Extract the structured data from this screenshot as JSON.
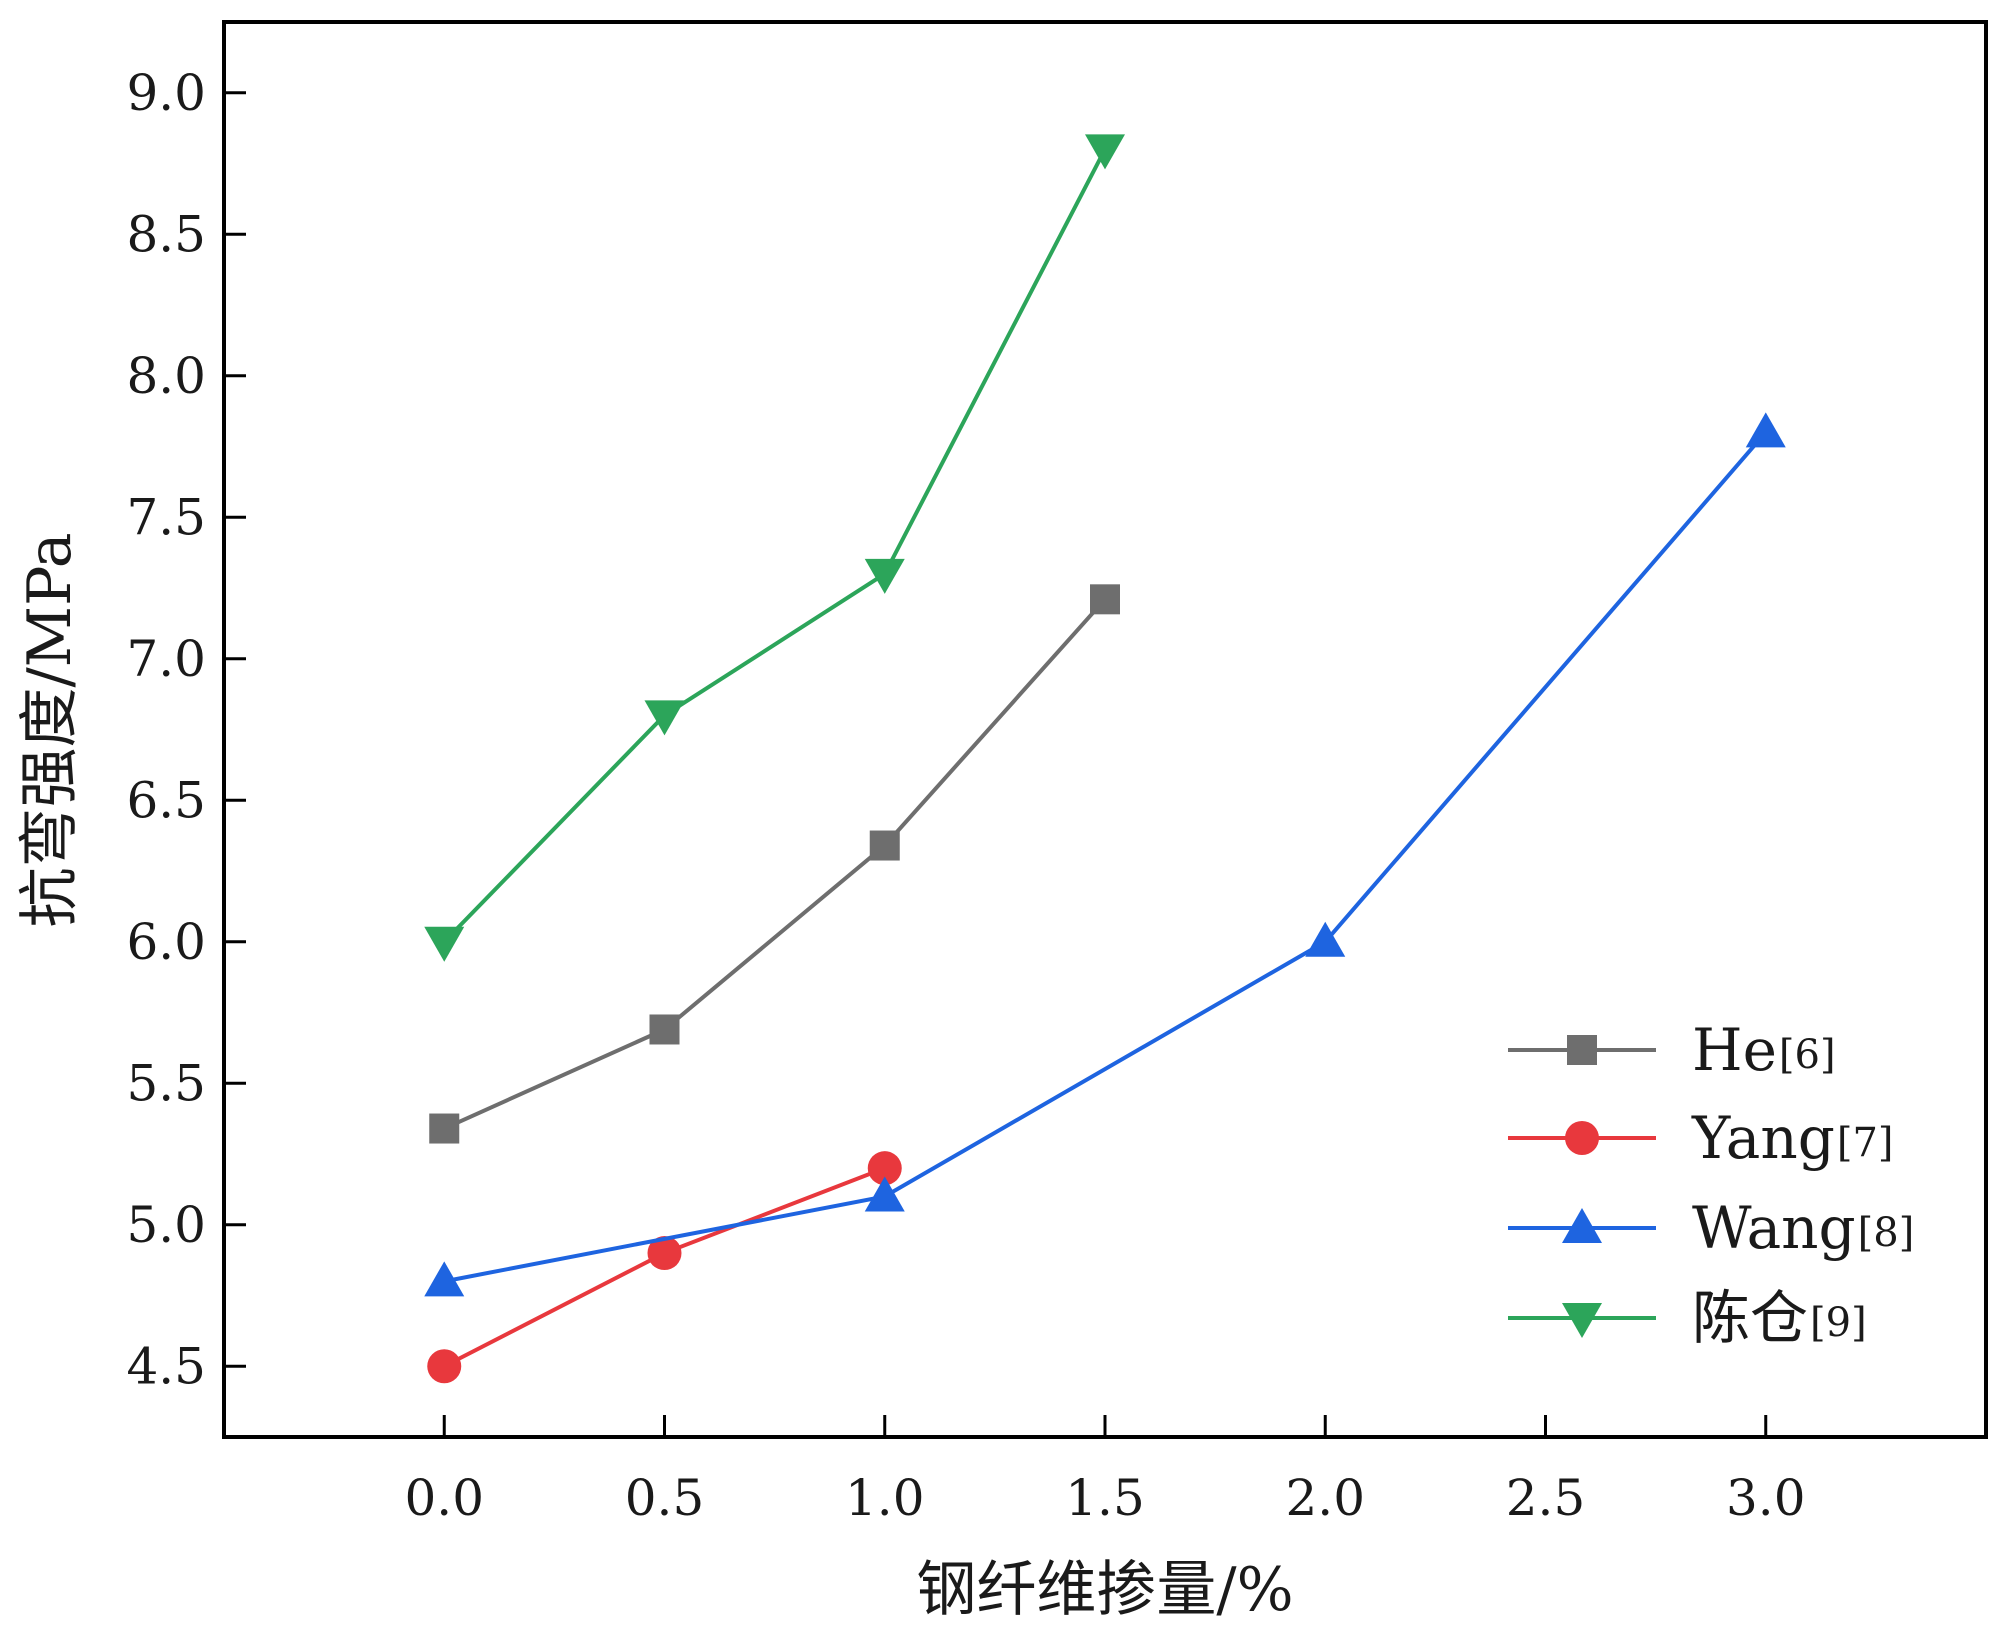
{
  "chart_data": {
    "type": "line",
    "xlabel": "钢纤维掺量/%",
    "ylabel": "抗弯强度/MPa",
    "xlim": [
      -0.5,
      3.5
    ],
    "ylim": [
      4.25,
      9.25
    ],
    "x_ticks": [
      0.0,
      0.5,
      1.0,
      1.5,
      2.0,
      2.5,
      3.0
    ],
    "y_ticks": [
      4.5,
      5.0,
      5.5,
      6.0,
      6.5,
      7.0,
      7.5,
      8.0,
      8.5,
      9.0
    ],
    "x_tick_labels": [
      "0.0",
      "0.5",
      "1.0",
      "1.5",
      "2.0",
      "2.5",
      "3.0"
    ],
    "y_tick_labels": [
      "4.5",
      "5.0",
      "5.5",
      "6.0",
      "6.5",
      "7.0",
      "7.5",
      "8.0",
      "8.5",
      "9.0"
    ],
    "legend_position": "bottom-right",
    "series": [
      {
        "name": "He",
        "ref": "[6]",
        "color": "#6e6e6e",
        "marker": "square",
        "x": [
          0.0,
          0.5,
          1.0,
          1.5
        ],
        "values": [
          5.34,
          5.69,
          6.34,
          7.21
        ]
      },
      {
        "name": "Yang",
        "ref": "[7]",
        "color": "#e8383d",
        "marker": "circle",
        "x": [
          0.0,
          0.5,
          1.0
        ],
        "values": [
          4.5,
          4.9,
          5.2
        ]
      },
      {
        "name": "Wang",
        "ref": "[8]",
        "color": "#1e64e0",
        "marker": "triangle-up",
        "x": [
          0.0,
          1.0,
          2.0,
          3.0
        ],
        "values": [
          4.8,
          5.1,
          6.0,
          7.8
        ]
      },
      {
        "name": "陈仓",
        "ref": "[9]",
        "color": "#2ca55a",
        "marker": "triangle-down",
        "x": [
          0.0,
          0.5,
          1.0,
          1.5
        ],
        "values": [
          6.0,
          6.8,
          7.3,
          8.8
        ]
      }
    ]
  }
}
